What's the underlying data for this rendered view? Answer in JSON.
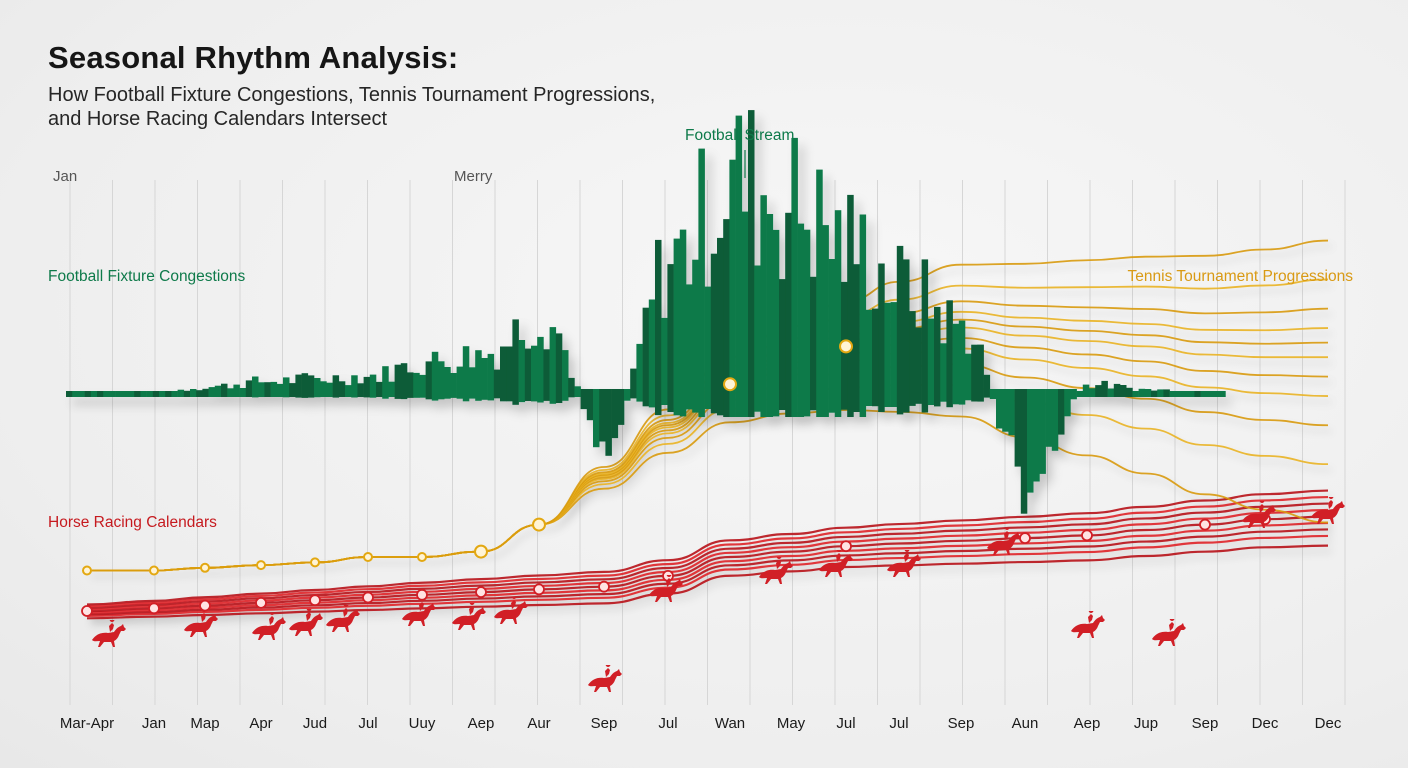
{
  "title": "Seasonal Rhythm Analysis:",
  "subtitle_line1": "How Football Fixture Congestions, Tennis Tournament Progressions,",
  "subtitle_line2": "and Horse Racing Calendars Intersect",
  "labels": {
    "football": "Football Fixture Congestions",
    "football_stream": "Football Stream",
    "tennis": "Tennis Tournament Progressions",
    "racing": "Horse Racing Calendars"
  },
  "top_ticks": [
    "Jan",
    "Merry"
  ],
  "colors": {
    "football": "#0e7a4a",
    "football_dark": "#0a5c37",
    "tennis": "#e3a812",
    "racing": "#d11f26",
    "grid": "#d6d6d6"
  },
  "chart_data": {
    "type": "area",
    "xlabel": "",
    "ylabel": "",
    "grid": true,
    "categories": [
      "Mar-Apr",
      "Jan",
      "Map",
      "Apr",
      "Jud",
      "Jul",
      "Uuy",
      "Aep",
      "Aur",
      "Sep",
      "Jul",
      "Wan",
      "May",
      "Jul",
      "Jul",
      "Sep",
      "Aun",
      "Aep",
      "Jup",
      "Sep",
      "Dec",
      "Dec"
    ],
    "series": [
      {
        "name": "Football Fixture Congestions",
        "style": "bars",
        "values": [
          1,
          1,
          3,
          5,
          6,
          7,
          12,
          15,
          30,
          -18,
          50,
          80,
          70,
          55,
          40,
          25,
          -35,
          4,
          2,
          1,
          0,
          0
        ]
      },
      {
        "name": "Tennis Tournament Progressions",
        "style": "lines",
        "values": [
          -65,
          -65,
          -64,
          -63,
          -62,
          -60,
          -60,
          -58,
          -48,
          -30,
          -12,
          4,
          12,
          18,
          22,
          25,
          22,
          20,
          18,
          15,
          14,
          14
        ]
      },
      {
        "name": "Horse Racing Calendars",
        "style": "lines",
        "values": [
          -80,
          -79,
          -78,
          -77,
          -76,
          -75,
          -74,
          -73,
          -72,
          -71,
          -67,
          -60,
          -58,
          -56,
          -55,
          -54,
          -53,
          -52,
          -50,
          -48,
          -46,
          -45
        ]
      }
    ]
  }
}
